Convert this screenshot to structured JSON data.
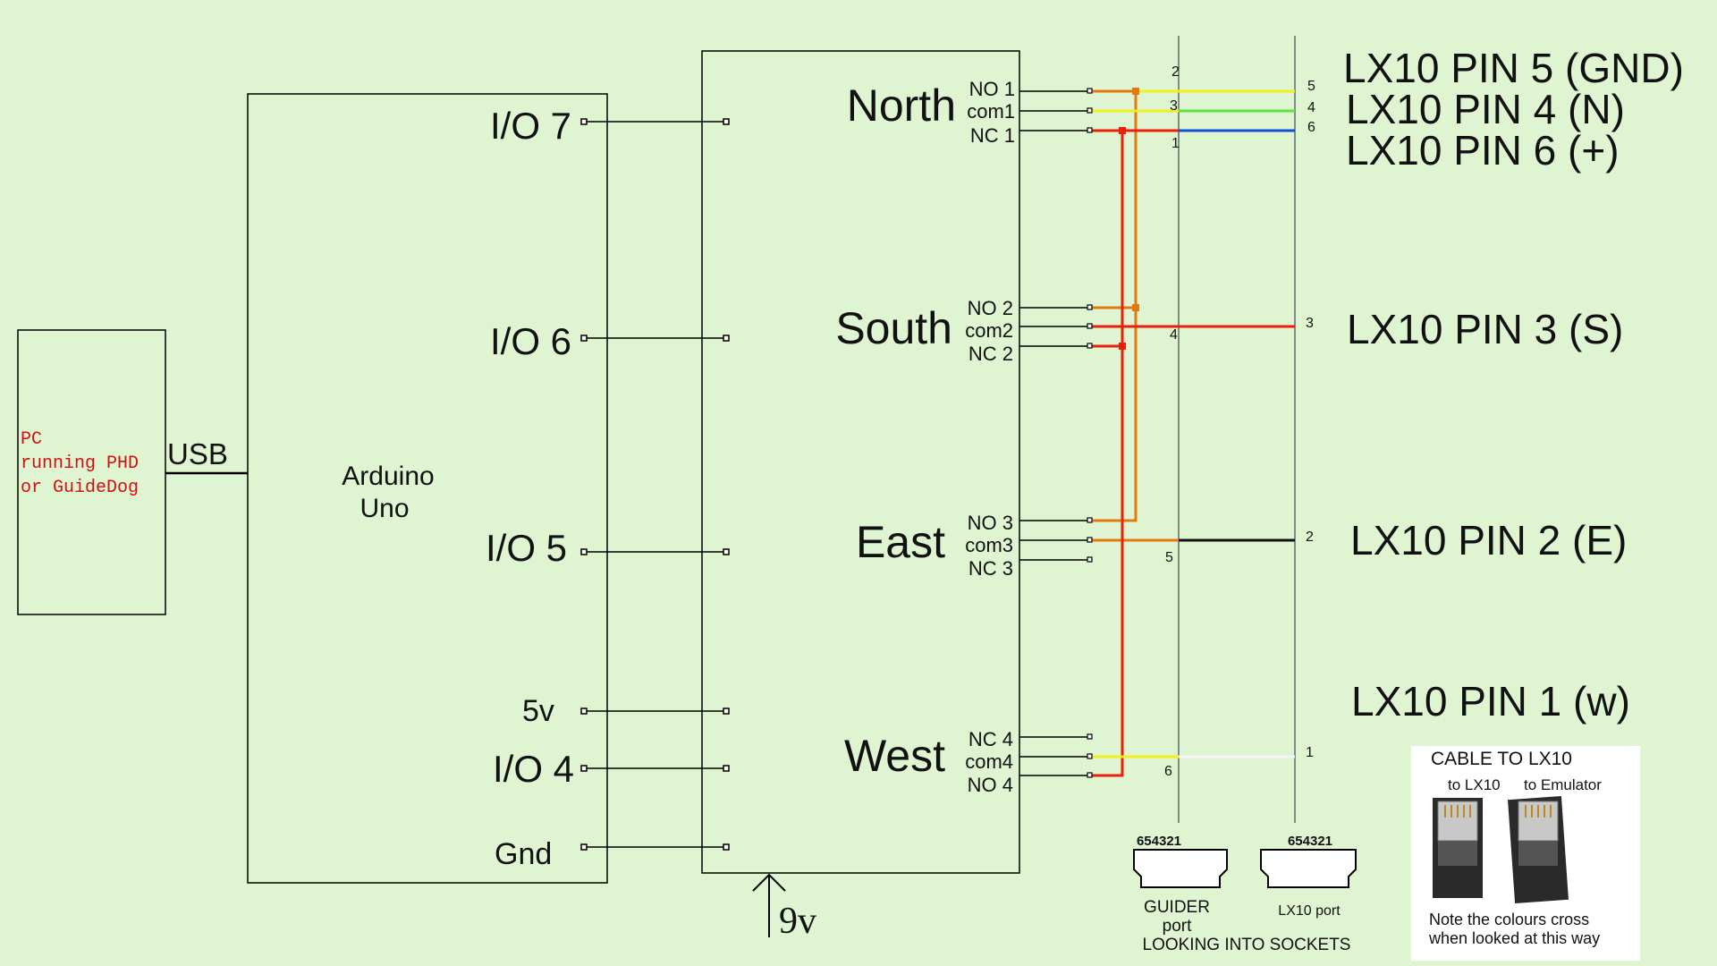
{
  "pc": {
    "line1": "PC",
    "line2": "running PHD",
    "line3": "or GuideDog",
    "usb": "USB"
  },
  "arduino": {
    "name1": "Arduino",
    "name2": "Uno",
    "io7": "I/O 7",
    "io6": "I/O 6",
    "io5": "I/O 5",
    "v5": "5v",
    "io4": "I/O 4",
    "gnd": "Gnd"
  },
  "relay": {
    "north": "North",
    "south": "South",
    "east": "East",
    "west": "West",
    "n_no": "NO 1",
    "n_com": "com1",
    "n_nc": "NC 1",
    "s_no": "NO 2",
    "s_com": "com2",
    "s_nc": "NC 2",
    "e_no": "NO 3",
    "e_com": "com3",
    "e_nc": "NC 3",
    "w_nc": "NC 4",
    "w_com": "com4",
    "w_no": "NO 4",
    "power": "9v"
  },
  "guider_pins": {
    "p2": "2",
    "p3": "3",
    "p1": "1",
    "p4": "4",
    "p5": "5",
    "p6": "6"
  },
  "lx_pins": {
    "p5": "5",
    "p4": "4",
    "p6": "6",
    "p3": "3",
    "p2": "2",
    "p1": "1"
  },
  "lx_labels": {
    "pin5": "LX10 PIN 5 (GND)",
    "pin4": "LX10 PIN 4 (N)",
    "pin6": "LX10 PIN 6 (+)",
    "pin3": "LX10 PIN 3 (S)",
    "pin2": "LX10 PIN 2 (E)",
    "pin1": "LX10 PIN 1 (w)"
  },
  "sockets": {
    "guider_num": "654321",
    "lx_num": "654321",
    "guider_label1": "GUIDER",
    "guider_label2": "port",
    "lx_label": "LX10 port",
    "looking": "LOOKING INTO SOCKETS"
  },
  "cable_photo": {
    "title": "CABLE TO LX10",
    "to_lx10": "to LX10",
    "to_emulator": "to Emulator",
    "note1": "Note the colours cross",
    "note2": "when looked at this way"
  },
  "colors": {
    "background": "#dff5d2",
    "red": "#e8200a",
    "orange": "#e07a10",
    "yellow": "#f0f020",
    "green": "#60e040",
    "blue": "#1050d0"
  }
}
